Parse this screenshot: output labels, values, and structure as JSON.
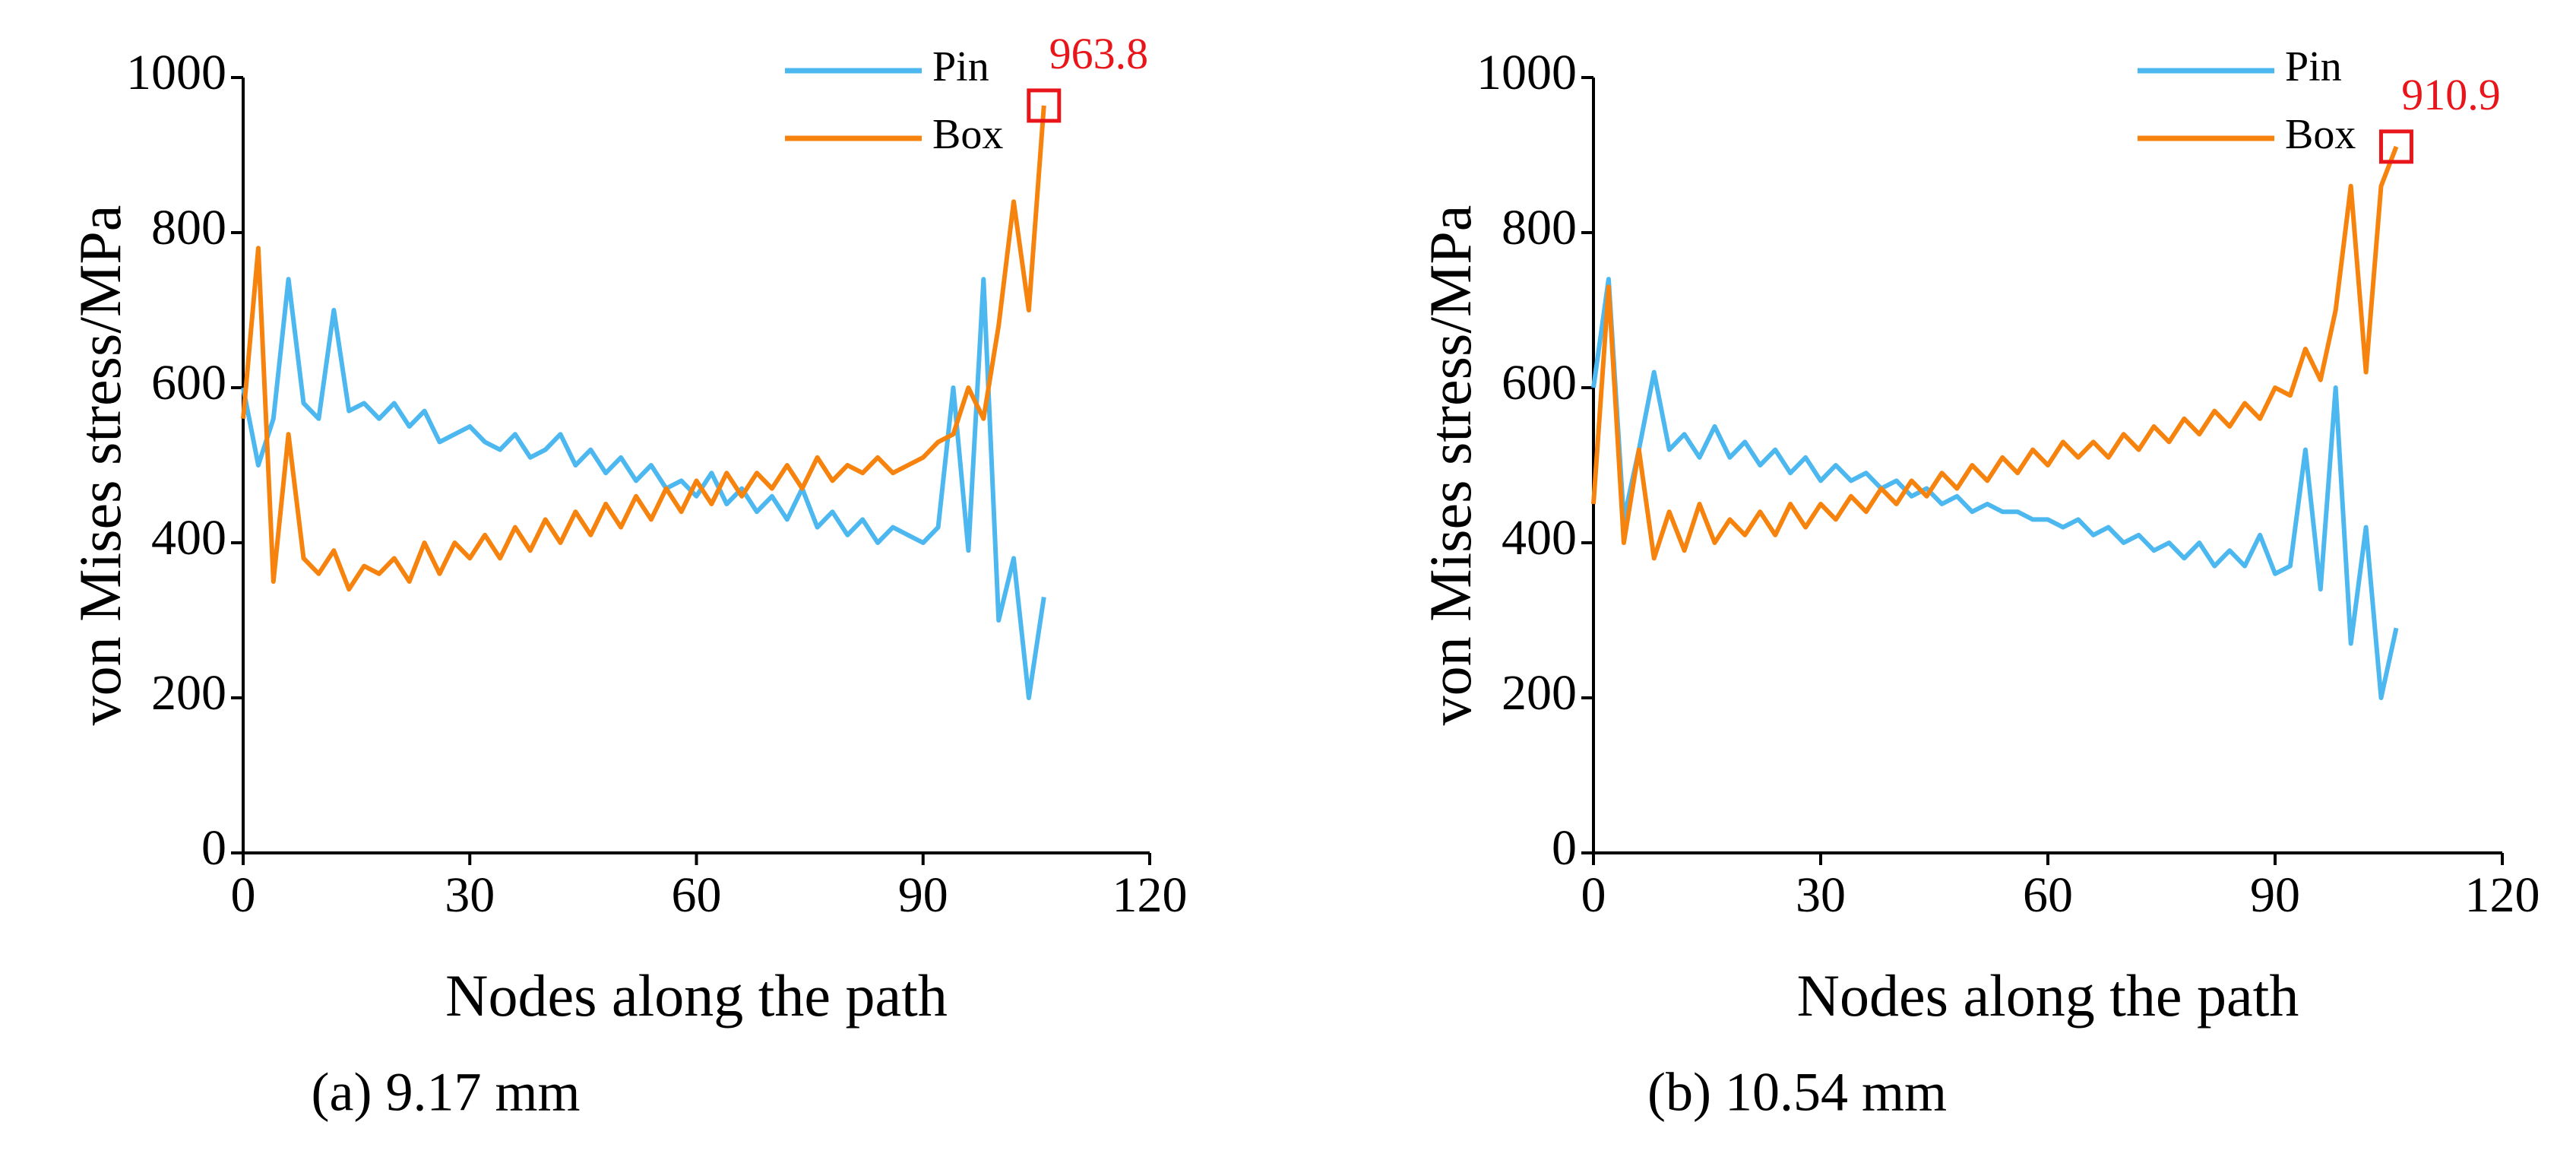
{
  "chart_data": [
    {
      "type": "line",
      "caption": "(a) 9.17 mm",
      "xlabel": "Nodes along the path",
      "ylabel": "von Mises stress/MPa",
      "xlim": [
        0,
        120
      ],
      "xticks": [
        0,
        30,
        60,
        90,
        120
      ],
      "ylim": [
        0,
        1000
      ],
      "yticks": [
        0,
        200,
        400,
        600,
        800,
        1000
      ],
      "x": [
        0,
        2,
        4,
        6,
        8,
        10,
        12,
        14,
        16,
        18,
        20,
        22,
        24,
        26,
        28,
        30,
        32,
        34,
        36,
        38,
        40,
        42,
        44,
        46,
        48,
        50,
        52,
        54,
        56,
        58,
        60,
        62,
        64,
        66,
        68,
        70,
        72,
        74,
        76,
        78,
        80,
        82,
        84,
        86,
        88,
        90,
        92,
        94,
        96,
        98,
        100,
        102,
        104,
        106
      ],
      "series": [
        {
          "name": "Pin",
          "color": "#4db8f0",
          "values": [
            600,
            500,
            560,
            740,
            580,
            560,
            700,
            570,
            580,
            560,
            580,
            550,
            570,
            530,
            540,
            550,
            530,
            520,
            540,
            510,
            520,
            540,
            500,
            520,
            490,
            510,
            480,
            500,
            470,
            480,
            460,
            490,
            450,
            470,
            440,
            460,
            430,
            470,
            420,
            440,
            410,
            430,
            400,
            420,
            410,
            400,
            420,
            600,
            390,
            740,
            300,
            380,
            200,
            330
          ]
        },
        {
          "name": "Box",
          "color": "#f7830f",
          "values": [
            560,
            780,
            350,
            540,
            380,
            360,
            390,
            340,
            370,
            360,
            380,
            350,
            400,
            360,
            400,
            380,
            410,
            380,
            420,
            390,
            430,
            400,
            440,
            410,
            450,
            420,
            460,
            430,
            470,
            440,
            480,
            450,
            490,
            460,
            490,
            470,
            500,
            470,
            510,
            480,
            500,
            490,
            510,
            490,
            500,
            510,
            530,
            540,
            600,
            560,
            680,
            840,
            700,
            963.8
          ]
        }
      ],
      "annotation": {
        "text": "963.8",
        "x": 106,
        "y": 963.8
      }
    },
    {
      "type": "line",
      "caption": "(b) 10.54 mm",
      "xlabel": "Nodes along the path",
      "ylabel": "von Mises stress/MPa",
      "xlim": [
        0,
        120
      ],
      "xticks": [
        0,
        30,
        60,
        90,
        120
      ],
      "ylim": [
        0,
        1000
      ],
      "yticks": [
        0,
        200,
        400,
        600,
        800,
        1000
      ],
      "x": [
        0,
        2,
        4,
        6,
        8,
        10,
        12,
        14,
        16,
        18,
        20,
        22,
        24,
        26,
        28,
        30,
        32,
        34,
        36,
        38,
        40,
        42,
        44,
        46,
        48,
        50,
        52,
        54,
        56,
        58,
        60,
        62,
        64,
        66,
        68,
        70,
        72,
        74,
        76,
        78,
        80,
        82,
        84,
        86,
        88,
        90,
        92,
        94,
        96,
        98,
        100,
        102,
        104,
        106
      ],
      "series": [
        {
          "name": "Pin",
          "color": "#4db8f0",
          "values": [
            600,
            740,
            430,
            520,
            620,
            520,
            540,
            510,
            550,
            510,
            530,
            500,
            520,
            490,
            510,
            480,
            500,
            480,
            490,
            470,
            480,
            460,
            470,
            450,
            460,
            440,
            450,
            440,
            440,
            430,
            430,
            420,
            430,
            410,
            420,
            400,
            410,
            390,
            400,
            380,
            400,
            370,
            390,
            370,
            410,
            360,
            370,
            520,
            340,
            600,
            270,
            420,
            200,
            290
          ]
        },
        {
          "name": "Box",
          "color": "#f7830f",
          "values": [
            450,
            730,
            400,
            520,
            380,
            440,
            390,
            450,
            400,
            430,
            410,
            440,
            410,
            450,
            420,
            450,
            430,
            460,
            440,
            470,
            450,
            480,
            460,
            490,
            470,
            500,
            480,
            510,
            490,
            520,
            500,
            530,
            510,
            530,
            510,
            540,
            520,
            550,
            530,
            560,
            540,
            570,
            550,
            580,
            560,
            600,
            590,
            650,
            610,
            700,
            860,
            620,
            860,
            910.9
          ]
        }
      ],
      "annotation": {
        "text": "910.9",
        "x": 106,
        "y": 910.9
      }
    }
  ]
}
